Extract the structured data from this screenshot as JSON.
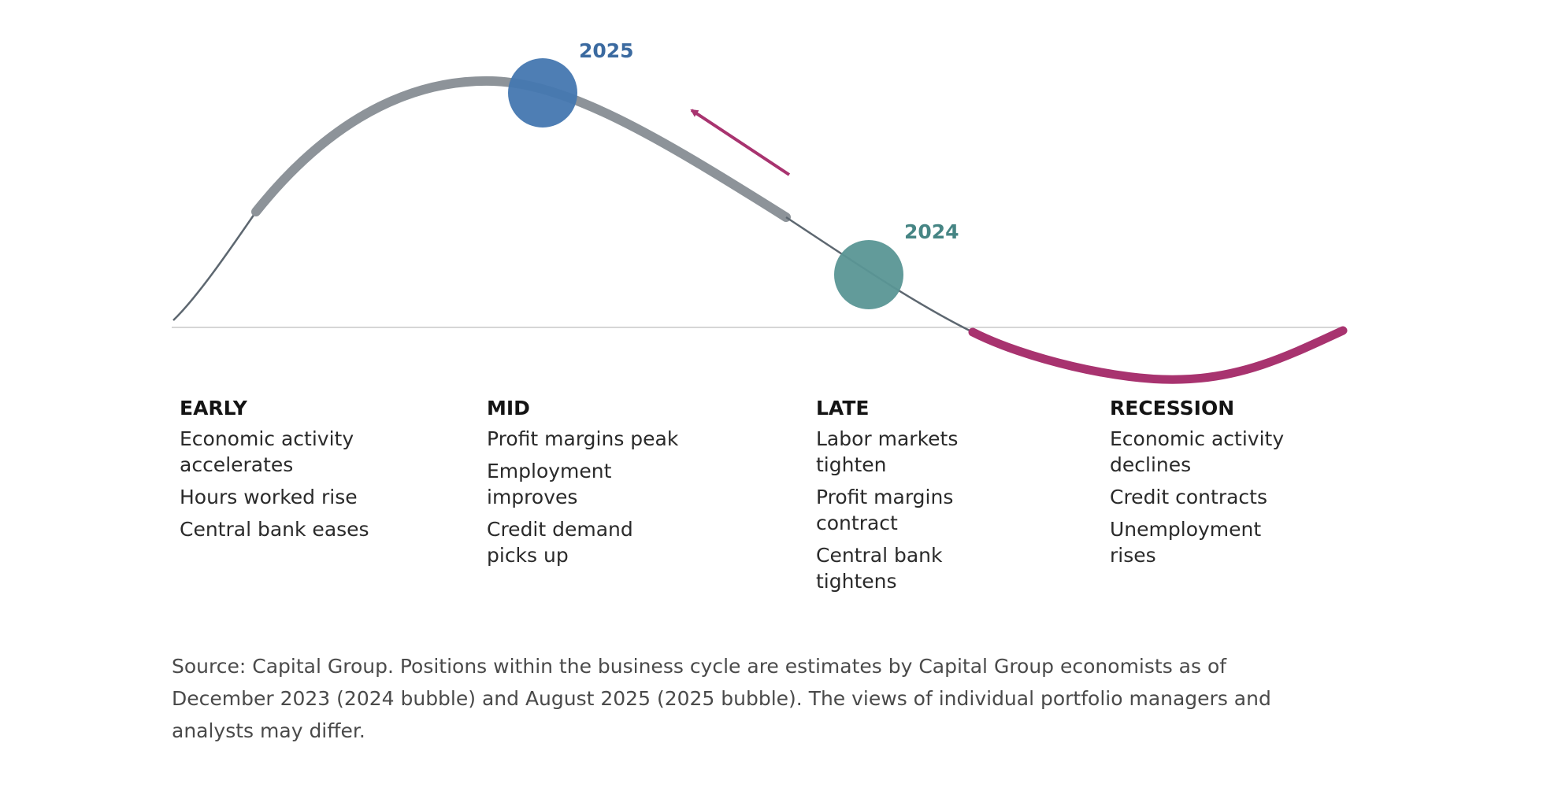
{
  "diagram": {
    "bubbles": [
      {
        "year": "2025",
        "color": "#4577b0",
        "label_color": "#3b6aa0"
      },
      {
        "year": "2024",
        "color": "#5a9695",
        "label_color": "#468584"
      }
    ],
    "arrow_color": "#a8336f",
    "curve_color": "#8d9399",
    "thin_curve_color": "#5d6770",
    "recession_color": "#a8336f",
    "axis_color": "#c8c8c8"
  },
  "phases": [
    {
      "title": "EARLY",
      "items": [
        "Economic activity accelerates",
        "Hours worked rise",
        "Central bank eases"
      ]
    },
    {
      "title": "MID",
      "items": [
        "Profit margins peak",
        "Employment improves",
        "Credit demand picks up"
      ]
    },
    {
      "title": "LATE",
      "items": [
        "Labor markets tighten",
        "Profit margins contract",
        "Central bank tightens"
      ]
    },
    {
      "title": "RECESSION",
      "items": [
        "Economic activity declines",
        "Credit contracts",
        "Unemployment rises"
      ]
    }
  ],
  "source": "Source: Capital Group. Positions within the business cycle are estimates by Capital Group economists as of December 2023 (2024 bubble) and August 2025 (2025 bubble). The views of individual portfolio managers and analysts may differ."
}
